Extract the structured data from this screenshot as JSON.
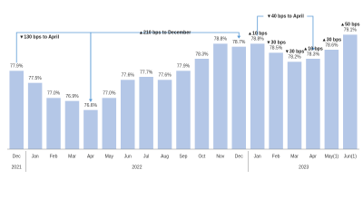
{
  "chart_data": {
    "type": "bar",
    "categories": [
      "Dec",
      "Jan",
      "Feb",
      "Mar",
      "Apr",
      "May",
      "Jun",
      "Jul",
      "Aug",
      "Sep",
      "Oct",
      "Nov",
      "Dec",
      "Jan",
      "Feb",
      "Mar",
      "Apr",
      "May(1)",
      "Jun(1)"
    ],
    "years": [
      "2021",
      "2022",
      "2023"
    ],
    "values": [
      77.9,
      77.5,
      77.0,
      76.9,
      76.6,
      77.0,
      77.6,
      77.7,
      77.6,
      77.9,
      78.3,
      78.8,
      78.7,
      78.8,
      78.5,
      78.2,
      78.3,
      78.6,
      79.1
    ],
    "value_labels": [
      "77.9%",
      "77.5%",
      "77.0%",
      "76.9%",
      "76.6%",
      "77.0%",
      "77.6%",
      "77.7%",
      "77.6%",
      "77.9%",
      "78.3%",
      "78.8%",
      "78.7%",
      "78.8%",
      "78.5%",
      "78.2%",
      "78.3%",
      "78.6%",
      "79.1%"
    ],
    "color": "#b4c7e7",
    "ylim": [
      75.3,
      79.5
    ],
    "annotations": [
      "▼130 bps to April",
      "▲210 bps to December",
      "▼40 bps to April",
      "▲10 bps",
      "▼30 bps",
      "▼30 bps",
      "▲10 bps",
      "▲30 bps",
      "▲50 bps"
    ]
  }
}
